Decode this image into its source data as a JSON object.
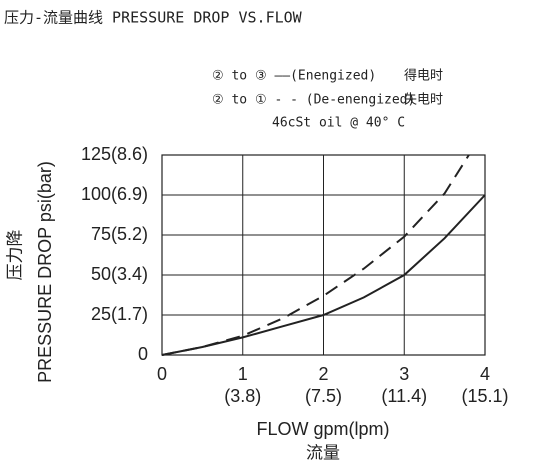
{
  "chart_data": {
    "type": "line",
    "title": "压力-流量曲线 PRESSURE DROP VS.FLOW",
    "note": "46cSt oil @ 40° C",
    "x_label": "FLOW gpm(lpm)",
    "x_label_cn": "流量",
    "y_label": "PRESSURE DROP psi(bar)",
    "y_label_cn": "压力降",
    "xlim": [
      0,
      4
    ],
    "ylim": [
      0,
      125
    ],
    "xticks": [
      {
        "value": 0,
        "label": "0"
      },
      {
        "value": 1,
        "label": "1",
        "label_lpm": "(3.8)"
      },
      {
        "value": 2,
        "label": "2",
        "label_lpm": "(7.5)"
      },
      {
        "value": 3,
        "label": "3",
        "label_lpm": "(11.4)"
      },
      {
        "value": 4,
        "label": "4",
        "label_lpm": "(15.1)"
      }
    ],
    "yticks": [
      {
        "value": 0,
        "label": "0"
      },
      {
        "value": 25,
        "label": "25(1.7)"
      },
      {
        "value": 50,
        "label": "50(3.4)"
      },
      {
        "value": 75,
        "label": "75(5.2)"
      },
      {
        "value": 100,
        "label": "100(6.9)"
      },
      {
        "value": 125,
        "label": "125(8.6)"
      }
    ],
    "grid": true,
    "series": [
      {
        "name": "② to ③ ——(Enengized)",
        "name_cn": "得电时",
        "color": "#222222",
        "dash": "solid",
        "x": [
          0,
          0.5,
          1,
          1.5,
          2,
          2.5,
          3,
          3.5,
          4
        ],
        "values": [
          0,
          5,
          11,
          18,
          25,
          36,
          50,
          73,
          100
        ]
      },
      {
        "name": "② to ① - - (De-enengized)",
        "name_cn": "失电时",
        "color": "#222222",
        "dash": "dashed",
        "x": [
          0,
          0.5,
          1,
          1.5,
          2,
          2.5,
          3,
          3.5,
          3.8
        ],
        "values": [
          0,
          5,
          12,
          23,
          37,
          54,
          74,
          101,
          125
        ]
      }
    ]
  }
}
